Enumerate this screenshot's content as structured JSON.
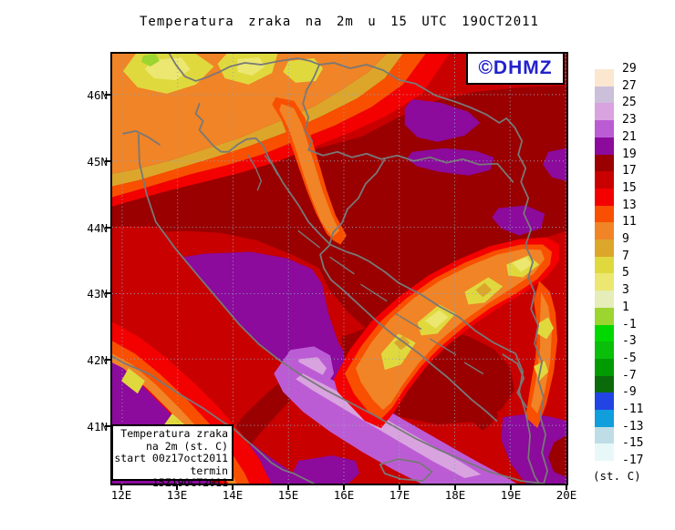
{
  "title": "Temperatura zraka na 2m u 15 UTC 19OCT2011",
  "logo": "©DHMZ",
  "info_box": {
    "lines": [
      "Temperatura zraka",
      "na 2m (st. C)",
      "start 00z17oct2011",
      "termin 15Z19OCT2011"
    ]
  },
  "axes": {
    "lat_labels": [
      "46N",
      "45N",
      "44N",
      "43N",
      "42N",
      "41N"
    ],
    "lon_labels": [
      "12E",
      "13E",
      "14E",
      "15E",
      "16E",
      "17E",
      "18E",
      "19E",
      "20E"
    ]
  },
  "legend": {
    "unit_label": "(st. C)",
    "boundaries": [
      "29",
      "27",
      "25",
      "23",
      "21",
      "19",
      "17",
      "15",
      "13",
      "11",
      "9",
      "7",
      "5",
      "3",
      "1",
      "-1",
      "-3",
      "-5",
      "-7",
      "-9",
      "-11",
      "-13",
      "-15",
      "-17"
    ],
    "colors": [
      "#FBE7D0",
      "#CCBFDA",
      "#D9A3DF",
      "#BC5CD5",
      "#8C0A9C",
      "#9A0000",
      "#C80000",
      "#F30000",
      "#F94F00",
      "#F08426",
      "#DCA62B",
      "#E0D93E",
      "#EBE770",
      "#E6EDB9",
      "#9CD52F",
      "#00D800",
      "#0ABF0A",
      "#009B00",
      "#0B6B0B",
      "#2244E4",
      "#109EDC",
      "#BFDDE6",
      "#E8F8F8"
    ]
  },
  "palette": {
    "t29_27": "#FBE7D0",
    "t27_25": "#CCBFDA",
    "t25_23": "#D9A3DF",
    "t23_21": "#BC5CD5",
    "t21_19": "#8C0A9C",
    "t19_17": "#9A0000",
    "t17_15": "#C80000",
    "t15_13": "#F30000",
    "t13_11": "#F94F00",
    "t11_9": "#F08426",
    "t9_7": "#DCA62B",
    "t7_5": "#E0D93E",
    "t5_3": "#EBE770",
    "t3_1": "#E6EDB9",
    "t1_m1": "#9CD52F",
    "coast": "#787878",
    "grid": "#93A5BC",
    "logo_blue": "#2222CC",
    "frame": "#000000"
  }
}
